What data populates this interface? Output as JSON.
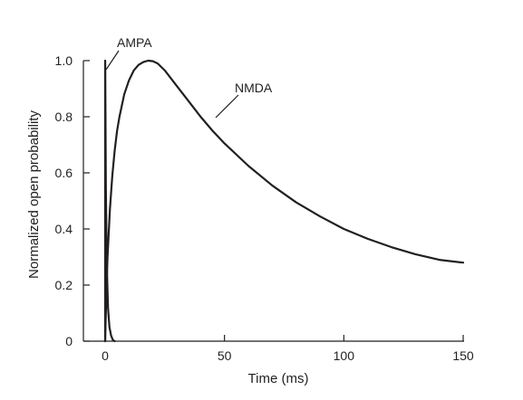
{
  "chart_data": {
    "type": "line",
    "title": "",
    "xlabel": "Time (ms)",
    "ylabel": "Normalized open probability",
    "xlim": [
      -5,
      150
    ],
    "ylim": [
      0,
      1.0
    ],
    "x_ticks": [
      0,
      50,
      100,
      150
    ],
    "x_tick_labels": [
      "0",
      "50",
      "100",
      "150"
    ],
    "y_ticks": [
      0,
      0.2,
      0.4,
      0.6,
      0.8,
      1.0
    ],
    "y_tick_labels": [
      "0",
      "0.2",
      "0.4",
      "0.6",
      "0.8",
      "1.0"
    ],
    "grid": false,
    "legend": "none",
    "line_color": "#231f20",
    "annotations": [
      {
        "text": "AMPA",
        "series": "AMPA"
      },
      {
        "text": "NMDA",
        "series": "NMDA"
      }
    ],
    "series": [
      {
        "name": "AMPA",
        "x": [
          0,
          0.02,
          0.05,
          0.3,
          0.7,
          1.2,
          1.8,
          2.5,
          3.2,
          4.0
        ],
        "y": [
          0,
          1.0,
          0.97,
          0.55,
          0.27,
          0.12,
          0.05,
          0.02,
          0.005,
          0
        ]
      },
      {
        "name": "NMDA",
        "x": [
          0,
          0.5,
          1,
          2,
          3,
          4,
          5,
          6,
          8,
          10,
          12,
          14,
          16,
          18,
          20,
          22,
          25,
          30,
          35,
          40,
          45,
          50,
          60,
          70,
          80,
          90,
          100,
          110,
          120,
          130,
          140,
          150
        ],
        "y": [
          0,
          0.17,
          0.3,
          0.47,
          0.59,
          0.68,
          0.75,
          0.8,
          0.88,
          0.93,
          0.965,
          0.985,
          0.995,
          1.0,
          0.998,
          0.99,
          0.965,
          0.91,
          0.855,
          0.8,
          0.75,
          0.705,
          0.625,
          0.555,
          0.495,
          0.445,
          0.4,
          0.365,
          0.335,
          0.31,
          0.29,
          0.28
        ]
      }
    ]
  }
}
